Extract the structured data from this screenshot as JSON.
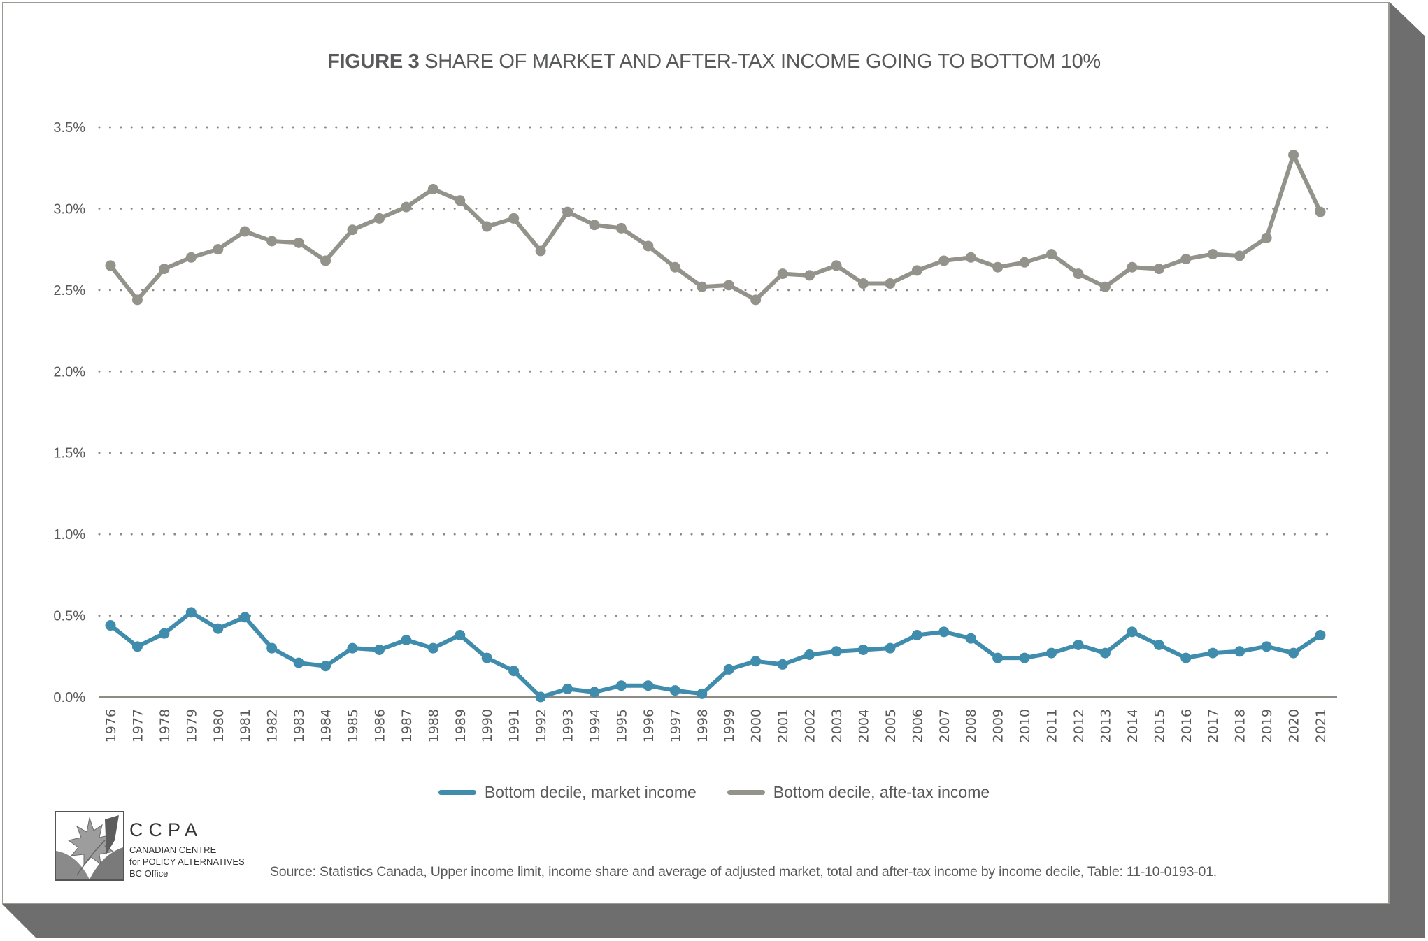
{
  "figure": {
    "label": "FIGURE 3",
    "title": "SHARE OF MARKET AND AFTER-TAX INCOME GOING TO BOTTOM 10%"
  },
  "legend": [
    {
      "label": "Bottom decile, market income",
      "color": "#3f8cad"
    },
    {
      "label": "Bottom decile, afte-tax income",
      "color": "#93938b"
    }
  ],
  "logo": {
    "acronym": "CCPA",
    "line1": "CANADIAN CENTRE",
    "line2": "for POLICY ALTERNATIVES",
    "line3": "BC Office"
  },
  "source": "Source: Statistics Canada, Upper income limit, income share and average of adjusted market, total and after-tax income by income decile, Table: 11-10-0193-01.",
  "chart_data": {
    "type": "line",
    "title": "SHARE OF MARKET AND AFTER-TAX INCOME GOING TO BOTTOM 10%",
    "xlabel": "",
    "ylabel": "",
    "ylim": [
      0,
      3.5
    ],
    "yticks": [
      "0.0%",
      "0.5%",
      "1.0%",
      "1.5%",
      "2.0%",
      "2.5%",
      "3.0%",
      "3.5%"
    ],
    "ytick_values": [
      0,
      0.5,
      1.0,
      1.5,
      2.0,
      2.5,
      3.0,
      3.5
    ],
    "grid": "horizontal-dotted",
    "legend_position": "bottom",
    "x": [
      "1976",
      "1977",
      "1978",
      "1979",
      "1980",
      "1981",
      "1982",
      "1983",
      "1984",
      "1985",
      "1986",
      "1987",
      "1988",
      "1989",
      "1990",
      "1991",
      "1992",
      "1993",
      "1994",
      "1995",
      "1996",
      "1997",
      "1998",
      "1999",
      "2000",
      "2001",
      "2002",
      "2003",
      "2004",
      "2005",
      "2006",
      "2007",
      "2008",
      "2009",
      "2010",
      "2011",
      "2012",
      "2013",
      "2014",
      "2015",
      "2016",
      "2017",
      "2018",
      "2019",
      "2020",
      "2021"
    ],
    "series": [
      {
        "name": "Bottom decile, market income",
        "color": "#3f8cad",
        "values": [
          0.44,
          0.31,
          0.39,
          0.52,
          0.42,
          0.49,
          0.3,
          0.21,
          0.19,
          0.3,
          0.29,
          0.35,
          0.3,
          0.38,
          0.24,
          0.16,
          0.0,
          0.05,
          0.03,
          0.07,
          0.07,
          0.04,
          0.02,
          0.17,
          0.22,
          0.2,
          0.26,
          0.28,
          0.29,
          0.3,
          0.38,
          0.4,
          0.36,
          0.24,
          0.24,
          0.27,
          0.32,
          0.27,
          0.4,
          0.32,
          0.24,
          0.27,
          0.28,
          0.31,
          0.27,
          0.38
        ]
      },
      {
        "name": "Bottom decile, afte-tax income",
        "color": "#93938b",
        "values": [
          2.65,
          2.44,
          2.63,
          2.7,
          2.75,
          2.86,
          2.8,
          2.79,
          2.68,
          2.87,
          2.94,
          3.01,
          3.12,
          3.05,
          2.89,
          2.94,
          2.74,
          2.98,
          2.9,
          2.88,
          2.77,
          2.64,
          2.52,
          2.53,
          2.44,
          2.6,
          2.59,
          2.65,
          2.54,
          2.54,
          2.62,
          2.68,
          2.7,
          2.64,
          2.67,
          2.72,
          2.6,
          2.52,
          2.64,
          2.63,
          2.69,
          2.72,
          2.71,
          2.82,
          3.33,
          2.98
        ]
      }
    ]
  }
}
